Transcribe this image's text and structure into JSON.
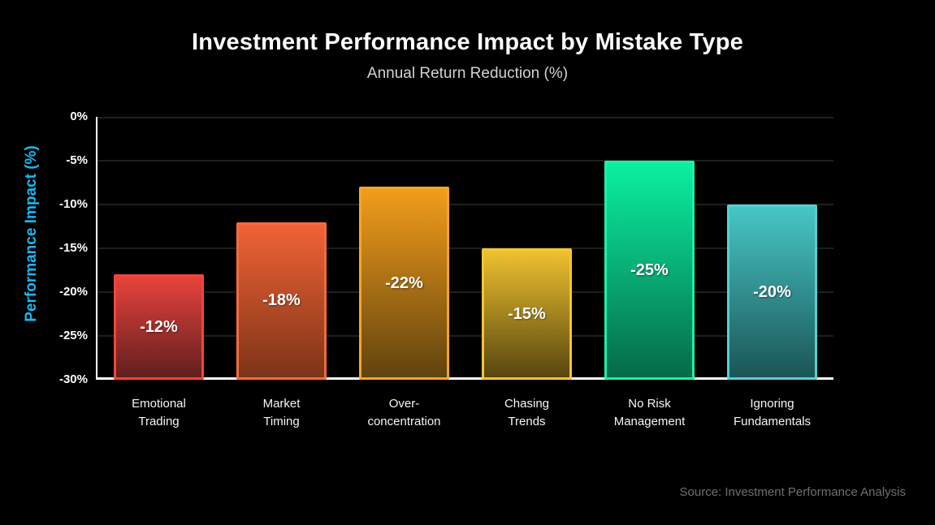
{
  "header": {
    "title": "Investment Performance Impact by Mistake Type",
    "subtitle": "Annual Return Reduction (%)"
  },
  "footer": {
    "source": "Source: Investment Performance Analysis"
  },
  "colors": {
    "background": "#000000",
    "title": "#ffffff",
    "subtitle": "#d2d2d2",
    "y_axis_title": "#18b8f0",
    "axis_line": "#ffffff",
    "gridline": "#1f1f1f",
    "tick_label": "#ffffff",
    "value_label": "#ffffff",
    "source": "#6f6f6f"
  },
  "chart_data": {
    "type": "bar",
    "title": "Investment Performance Impact by Mistake Type",
    "subtitle": "Annual Return Reduction (%)",
    "xlabel": "",
    "ylabel": "Performance Impact (%)",
    "categories": [
      "Emotional\nTrading",
      "Market\nTiming",
      "Over-\nconcentration",
      "Chasing\nTrends",
      "No Risk\nManagement",
      "Ignoring\nFundamentals"
    ],
    "values": [
      -12,
      -18,
      -22,
      -15,
      -25,
      -20
    ],
    "value_labels": [
      "-12%",
      "-18%",
      "-22%",
      "-15%",
      "-25%",
      "-20%"
    ],
    "ylim": [
      -30,
      0
    ],
    "ytick_labels": [
      "0%",
      "-5%",
      "-10%",
      "-15%",
      "-20%",
      "-25%",
      "-30%"
    ],
    "bar_baseline": -30,
    "grid": true,
    "legend": false,
    "bar_colors": [
      {
        "top": "#e8433b",
        "bottom": "#601f1f",
        "border": "#f4453c"
      },
      {
        "top": "#f26236",
        "bottom": "#7c3417",
        "border": "#f76b3c"
      },
      {
        "top": "#f39d1b",
        "bottom": "#60430e",
        "border": "#f6a623"
      },
      {
        "top": "#efc12f",
        "bottom": "#57460f",
        "border": "#f3c634"
      },
      {
        "top": "#0af0a0",
        "bottom": "#066a49",
        "border": "#19f2a6"
      },
      {
        "top": "#48c6c6",
        "bottom": "#1b5556",
        "border": "#52d2d2"
      }
    ]
  }
}
